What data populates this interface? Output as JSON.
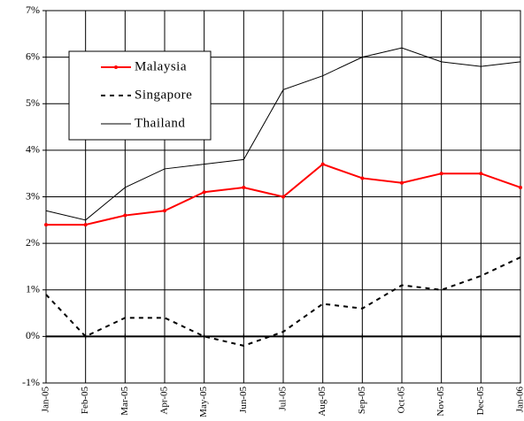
{
  "chart_data": {
    "type": "line",
    "categories": [
      "Jan-05",
      "Feb-05",
      "Mar-05",
      "Apr-05",
      "May-05",
      "Jun-05",
      "Jul-05",
      "Aug-05",
      "Sep-05",
      "Oct-05",
      "Nov-05",
      "Dec-05",
      "Jan-06"
    ],
    "series": [
      {
        "name": "Malaysia",
        "color": "#ff0000",
        "line_style": "solid",
        "width": 2,
        "marker": "circle",
        "values": [
          2.4,
          2.4,
          2.6,
          2.7,
          3.1,
          3.2,
          3.0,
          3.7,
          3.4,
          3.3,
          3.5,
          3.5,
          3.2
        ]
      },
      {
        "name": "Singapore",
        "color": "#000000",
        "line_style": "dashed",
        "width": 2,
        "marker": "none",
        "values": [
          0.9,
          0.0,
          0.4,
          0.4,
          0.0,
          -0.2,
          0.1,
          0.7,
          0.6,
          1.1,
          1.0,
          1.3,
          1.7
        ]
      },
      {
        "name": "Thailand",
        "color": "#000000",
        "line_style": "solid",
        "width": 1,
        "marker": "none",
        "values": [
          2.7,
          2.5,
          3.2,
          3.6,
          3.7,
          3.8,
          5.3,
          5.6,
          6.0,
          6.2,
          5.9,
          5.8,
          5.9
        ]
      }
    ],
    "ylim": [
      -1,
      7
    ],
    "yticks": [
      {
        "value": -1,
        "label": "-1%"
      },
      {
        "value": 0,
        "label": "0%"
      },
      {
        "value": 1,
        "label": "1%"
      },
      {
        "value": 2,
        "label": "2%"
      },
      {
        "value": 3,
        "label": "3%"
      },
      {
        "value": 4,
        "label": "4%"
      },
      {
        "value": 5,
        "label": "5%"
      },
      {
        "value": 6,
        "label": "6%"
      },
      {
        "value": 7,
        "label": "7%"
      }
    ],
    "grid": true,
    "legend": "upper left"
  }
}
